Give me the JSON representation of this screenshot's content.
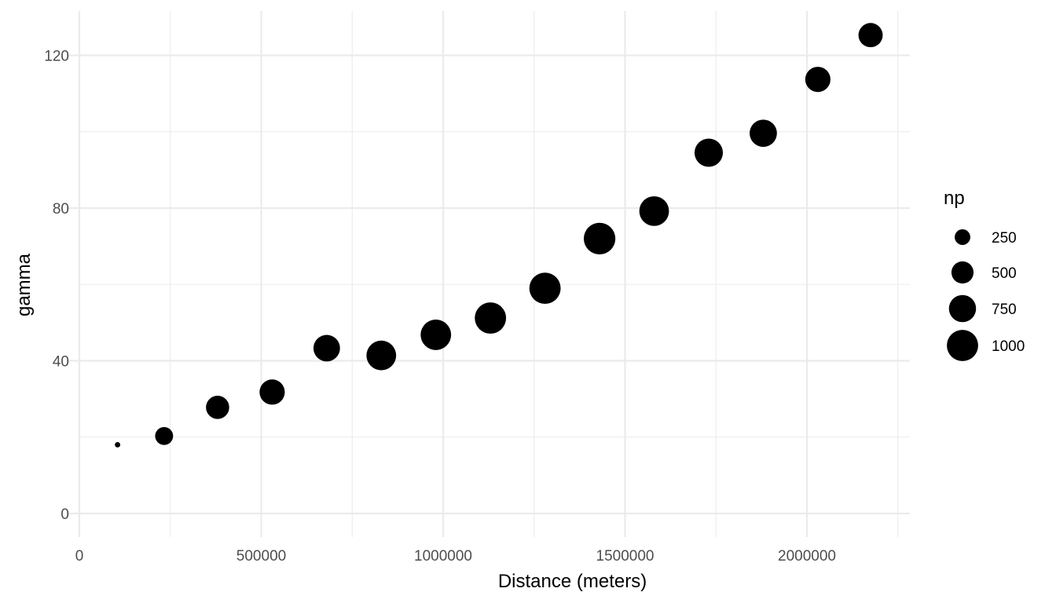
{
  "chart_data": {
    "type": "scatter",
    "title": "",
    "xlabel": "Distance (meters)",
    "ylabel": "gamma",
    "xlim": [
      0,
      2250000
    ],
    "ylim": [
      -6,
      131
    ],
    "x_ticks": [
      0,
      500000,
      1000000,
      1500000,
      2000000
    ],
    "x_tick_labels": [
      "0",
      "500000",
      "1000000",
      "1500000",
      "2000000"
    ],
    "y_ticks": [
      0,
      40,
      80,
      120
    ],
    "y_tick_labels": [
      "0",
      "40",
      "80",
      "120"
    ],
    "grid": true,
    "legend_position": "right",
    "point_color": "#000000",
    "points": [
      {
        "x": 105000,
        "y": 18.0,
        "np": 30
      },
      {
        "x": 233000,
        "y": 20.3,
        "np": 330
      },
      {
        "x": 380000,
        "y": 27.8,
        "np": 550
      },
      {
        "x": 530000,
        "y": 31.8,
        "np": 650
      },
      {
        "x": 680000,
        "y": 43.3,
        "np": 720
      },
      {
        "x": 830000,
        "y": 41.4,
        "np": 900
      },
      {
        "x": 980000,
        "y": 46.8,
        "np": 950
      },
      {
        "x": 1130000,
        "y": 51.2,
        "np": 1000
      },
      {
        "x": 1280000,
        "y": 59.0,
        "np": 1000
      },
      {
        "x": 1430000,
        "y": 72.0,
        "np": 1020
      },
      {
        "x": 1580000,
        "y": 79.2,
        "np": 900
      },
      {
        "x": 1730000,
        "y": 94.5,
        "np": 820
      },
      {
        "x": 1880000,
        "y": 99.6,
        "np": 760
      },
      {
        "x": 2030000,
        "y": 113.7,
        "np": 650
      },
      {
        "x": 2175000,
        "y": 125.3,
        "np": 600
      }
    ],
    "size_legend": {
      "title": "np",
      "entries": [
        {
          "label": "250",
          "value": 250
        },
        {
          "label": "500",
          "value": 500
        },
        {
          "label": "750",
          "value": 750
        },
        {
          "label": "1000",
          "value": 1000
        }
      ]
    }
  }
}
